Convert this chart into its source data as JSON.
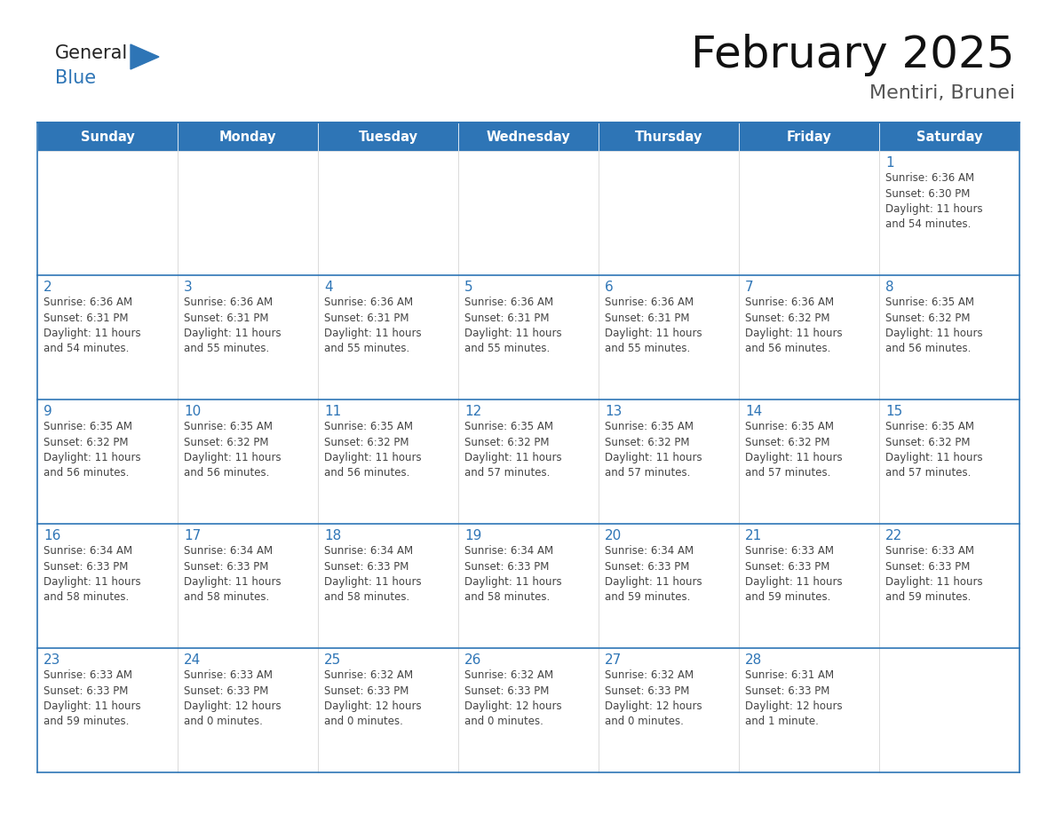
{
  "title": "February 2025",
  "subtitle": "Mentiri, Brunei",
  "header_color": "#2E75B6",
  "header_text_color": "#FFFFFF",
  "border_color": "#2E75B6",
  "day_number_color": "#2E75B6",
  "text_color": "#444444",
  "days_of_week": [
    "Sunday",
    "Monday",
    "Tuesday",
    "Wednesday",
    "Thursday",
    "Friday",
    "Saturday"
  ],
  "weeks": [
    [
      {
        "day": null,
        "info": null
      },
      {
        "day": null,
        "info": null
      },
      {
        "day": null,
        "info": null
      },
      {
        "day": null,
        "info": null
      },
      {
        "day": null,
        "info": null
      },
      {
        "day": null,
        "info": null
      },
      {
        "day": 1,
        "info": "Sunrise: 6:36 AM\nSunset: 6:30 PM\nDaylight: 11 hours\nand 54 minutes."
      }
    ],
    [
      {
        "day": 2,
        "info": "Sunrise: 6:36 AM\nSunset: 6:31 PM\nDaylight: 11 hours\nand 54 minutes."
      },
      {
        "day": 3,
        "info": "Sunrise: 6:36 AM\nSunset: 6:31 PM\nDaylight: 11 hours\nand 55 minutes."
      },
      {
        "day": 4,
        "info": "Sunrise: 6:36 AM\nSunset: 6:31 PM\nDaylight: 11 hours\nand 55 minutes."
      },
      {
        "day": 5,
        "info": "Sunrise: 6:36 AM\nSunset: 6:31 PM\nDaylight: 11 hours\nand 55 minutes."
      },
      {
        "day": 6,
        "info": "Sunrise: 6:36 AM\nSunset: 6:31 PM\nDaylight: 11 hours\nand 55 minutes."
      },
      {
        "day": 7,
        "info": "Sunrise: 6:36 AM\nSunset: 6:32 PM\nDaylight: 11 hours\nand 56 minutes."
      },
      {
        "day": 8,
        "info": "Sunrise: 6:35 AM\nSunset: 6:32 PM\nDaylight: 11 hours\nand 56 minutes."
      }
    ],
    [
      {
        "day": 9,
        "info": "Sunrise: 6:35 AM\nSunset: 6:32 PM\nDaylight: 11 hours\nand 56 minutes."
      },
      {
        "day": 10,
        "info": "Sunrise: 6:35 AM\nSunset: 6:32 PM\nDaylight: 11 hours\nand 56 minutes."
      },
      {
        "day": 11,
        "info": "Sunrise: 6:35 AM\nSunset: 6:32 PM\nDaylight: 11 hours\nand 56 minutes."
      },
      {
        "day": 12,
        "info": "Sunrise: 6:35 AM\nSunset: 6:32 PM\nDaylight: 11 hours\nand 57 minutes."
      },
      {
        "day": 13,
        "info": "Sunrise: 6:35 AM\nSunset: 6:32 PM\nDaylight: 11 hours\nand 57 minutes."
      },
      {
        "day": 14,
        "info": "Sunrise: 6:35 AM\nSunset: 6:32 PM\nDaylight: 11 hours\nand 57 minutes."
      },
      {
        "day": 15,
        "info": "Sunrise: 6:35 AM\nSunset: 6:32 PM\nDaylight: 11 hours\nand 57 minutes."
      }
    ],
    [
      {
        "day": 16,
        "info": "Sunrise: 6:34 AM\nSunset: 6:33 PM\nDaylight: 11 hours\nand 58 minutes."
      },
      {
        "day": 17,
        "info": "Sunrise: 6:34 AM\nSunset: 6:33 PM\nDaylight: 11 hours\nand 58 minutes."
      },
      {
        "day": 18,
        "info": "Sunrise: 6:34 AM\nSunset: 6:33 PM\nDaylight: 11 hours\nand 58 minutes."
      },
      {
        "day": 19,
        "info": "Sunrise: 6:34 AM\nSunset: 6:33 PM\nDaylight: 11 hours\nand 58 minutes."
      },
      {
        "day": 20,
        "info": "Sunrise: 6:34 AM\nSunset: 6:33 PM\nDaylight: 11 hours\nand 59 minutes."
      },
      {
        "day": 21,
        "info": "Sunrise: 6:33 AM\nSunset: 6:33 PM\nDaylight: 11 hours\nand 59 minutes."
      },
      {
        "day": 22,
        "info": "Sunrise: 6:33 AM\nSunset: 6:33 PM\nDaylight: 11 hours\nand 59 minutes."
      }
    ],
    [
      {
        "day": 23,
        "info": "Sunrise: 6:33 AM\nSunset: 6:33 PM\nDaylight: 11 hours\nand 59 minutes."
      },
      {
        "day": 24,
        "info": "Sunrise: 6:33 AM\nSunset: 6:33 PM\nDaylight: 12 hours\nand 0 minutes."
      },
      {
        "day": 25,
        "info": "Sunrise: 6:32 AM\nSunset: 6:33 PM\nDaylight: 12 hours\nand 0 minutes."
      },
      {
        "day": 26,
        "info": "Sunrise: 6:32 AM\nSunset: 6:33 PM\nDaylight: 12 hours\nand 0 minutes."
      },
      {
        "day": 27,
        "info": "Sunrise: 6:32 AM\nSunset: 6:33 PM\nDaylight: 12 hours\nand 0 minutes."
      },
      {
        "day": 28,
        "info": "Sunrise: 6:31 AM\nSunset: 6:33 PM\nDaylight: 12 hours\nand 1 minute."
      },
      {
        "day": null,
        "info": null
      }
    ]
  ],
  "logo_general_color": "#222222",
  "logo_blue_color": "#2E75B6",
  "logo_triangle_color": "#2E75B6",
  "fig_width": 11.88,
  "fig_height": 9.18,
  "dpi": 100
}
